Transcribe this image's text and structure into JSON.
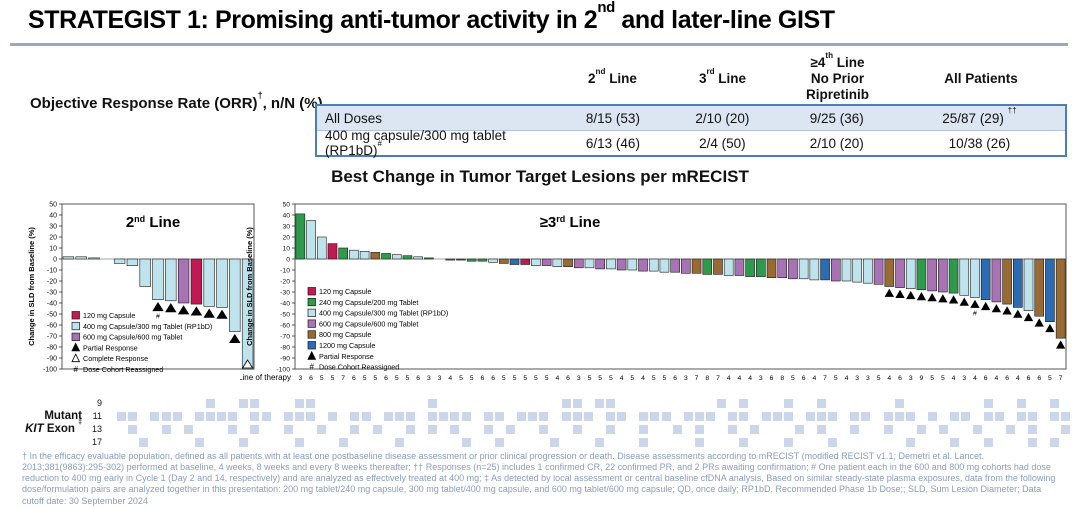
{
  "header": {
    "title_segments": [
      {
        "t": "STRATEGIST 1: Promising anti-tumor activity in 2"
      },
      {
        "t": "nd",
        "sup": true
      },
      {
        "t": " and later-line GIST"
      }
    ],
    "underline_color": "#9aa8c4"
  },
  "orr_table": {
    "row_label_segments": [
      {
        "t": "Objective Response Rate (ORR)"
      },
      {
        "t": "†",
        "sup": true
      },
      {
        "t": ", n/N (%)"
      }
    ],
    "columns": [
      {
        "lines": [
          [
            {
              "t": "2"
            },
            {
              "t": "nd",
              "sup": true
            },
            {
              "t": " Line"
            }
          ]
        ]
      },
      {
        "lines": [
          [
            {
              "t": "3"
            },
            {
              "t": "rd",
              "sup": true
            },
            {
              "t": " Line"
            }
          ]
        ]
      },
      {
        "lines": [
          [
            {
              "t": "≥4"
            },
            {
              "t": "th",
              "sup": true
            },
            {
              "t": " Line"
            }
          ],
          [
            {
              "t": "No Prior"
            }
          ],
          [
            {
              "t": "Ripretinib"
            }
          ]
        ]
      },
      {
        "lines": [
          [
            {
              "t": "All Patients"
            }
          ]
        ]
      }
    ],
    "rows": [
      {
        "label_segments": [
          {
            "t": "All Doses"
          }
        ],
        "values_segments": [
          [
            {
              "t": "8/15 (53)"
            }
          ],
          [
            {
              "t": "2/10 (20)"
            }
          ],
          [
            {
              "t": "9/25 (36)"
            }
          ],
          [
            {
              "t": "25/87 (29) "
            },
            {
              "t": "††",
              "sup": true
            }
          ]
        ]
      },
      {
        "label_segments": [
          {
            "t": "400 mg capsule/300 mg tablet (RP1bD)"
          },
          {
            "t": "#",
            "sup": true
          }
        ],
        "values_segments": [
          [
            {
              "t": "6/13 (46)"
            }
          ],
          [
            {
              "t": "2/4 (50)"
            }
          ],
          [
            {
              "t": "2/10 (20)"
            }
          ],
          [
            {
              "t": "10/38 (26)"
            }
          ]
        ]
      }
    ],
    "border_color": "#4a7ebb",
    "alt_row_color": "#dce6f2"
  },
  "chart_section": {
    "title": "Best Change in Tumor Target Lesions per mRECIST"
  },
  "chart_data": [
    {
      "type": "bar",
      "panel_title_segments": [
        {
          "t": "2"
        },
        {
          "t": "nd",
          "sup": true
        },
        {
          "t": " Line"
        }
      ],
      "ylabel": "Change in SLD from Baseline (%)",
      "xlabel": "",
      "ylim": [
        -100,
        50
      ],
      "ytick_step": 10,
      "legend_position": "inside-lower-left",
      "colors": {
        "c120": "#c11a52",
        "c240": "#2e9b4c",
        "rp1bd": "#bfe3ec",
        "c600": "#a873b5",
        "c800": "#996a33",
        "c1200": "#2b6cb5"
      },
      "legend": [
        {
          "c": "c120",
          "label": "120 mg Capsule"
        },
        {
          "c": "rp1bd",
          "label": "400 mg Capsule/300 mg Tablet (RP1bD)"
        },
        {
          "c": "c600",
          "label": "600 mg Capsule/600 mg Tablet"
        },
        {
          "glyph": "pr",
          "label": "Partial Response"
        },
        {
          "glyph": "cr",
          "label": "Complete Response"
        },
        {
          "glyph": "hash",
          "label": "Dose Cohort Reassigned"
        }
      ],
      "bars": [
        {
          "v": 2,
          "c": "rp1bd"
        },
        {
          "v": 2,
          "c": "rp1bd"
        },
        {
          "v": 1,
          "c": "rp1bd"
        },
        {
          "v": 0,
          "c": "rp1bd"
        },
        {
          "v": -4,
          "c": "rp1bd"
        },
        {
          "v": -6,
          "c": "rp1bd"
        },
        {
          "v": -25,
          "c": "rp1bd"
        },
        {
          "v": -37,
          "c": "rp1bd",
          "m": "pr",
          "hash": true
        },
        {
          "v": -38,
          "c": "rp1bd",
          "m": "pr"
        },
        {
          "v": -40,
          "c": "c600",
          "m": "pr"
        },
        {
          "v": -41,
          "c": "c120",
          "m": "pr"
        },
        {
          "v": -43,
          "c": "rp1bd",
          "m": "pr"
        },
        {
          "v": -44,
          "c": "rp1bd",
          "m": "pr"
        },
        {
          "v": -66,
          "c": "rp1bd",
          "m": "pr"
        },
        {
          "v": -100,
          "c": "rp1bd",
          "m": "cr"
        }
      ]
    },
    {
      "type": "bar",
      "panel_title_segments": [
        {
          "t": "≥3"
        },
        {
          "t": "rd",
          "sup": true
        },
        {
          "t": " Line"
        }
      ],
      "ylabel": "Change in SLD from Baseline (%)",
      "xlabel": "Line of therapy",
      "ylim": [
        -100,
        50
      ],
      "ytick_step": 10,
      "legend_position": "inside-lower-left",
      "colors": {
        "c120": "#c11a52",
        "c240": "#2e9b4c",
        "rp1bd": "#bfe3ec",
        "c600": "#a873b5",
        "c800": "#996a33",
        "c1200": "#2b6cb5"
      },
      "legend": [
        {
          "c": "c120",
          "label": "120 mg Capsule"
        },
        {
          "c": "c240",
          "label": "240 mg Capsule/200 mg Tablet"
        },
        {
          "c": "rp1bd",
          "label": "400 mg Capsule/300 mg Tablet (RP1bD)"
        },
        {
          "c": "c600",
          "label": "600 mg Capsule/600 mg Tablet"
        },
        {
          "c": "c800",
          "label": "800 mg Capsule"
        },
        {
          "c": "c1200",
          "label": "1200 mg Capsule"
        },
        {
          "glyph": "pr",
          "label": "Partial Response"
        },
        {
          "glyph": "hash",
          "label": "Dose Cohort Reassigned"
        }
      ],
      "bars": [
        {
          "v": 41,
          "c": "c240",
          "x": "3"
        },
        {
          "v": 35,
          "c": "rp1bd",
          "x": "6"
        },
        {
          "v": 20,
          "c": "rp1bd",
          "x": "5"
        },
        {
          "v": 14,
          "c": "c120",
          "x": "5"
        },
        {
          "v": 10,
          "c": "c240",
          "x": "7"
        },
        {
          "v": 8,
          "c": "rp1bd",
          "x": "6"
        },
        {
          "v": 7,
          "c": "rp1bd",
          "x": "5"
        },
        {
          "v": 6,
          "c": "c800",
          "x": "5"
        },
        {
          "v": 5,
          "c": "c240",
          "x": "6"
        },
        {
          "v": 4,
          "c": "rp1bd",
          "x": "5"
        },
        {
          "v": 3,
          "c": "c240",
          "x": "5"
        },
        {
          "v": 2,
          "c": "rp1bd",
          "x": "6"
        },
        {
          "v": 1,
          "c": "c240",
          "x": "3"
        },
        {
          "v": 0,
          "c": "rp1bd",
          "x": "3"
        },
        {
          "v": -1,
          "c": "c240",
          "x": "4"
        },
        {
          "v": -1,
          "c": "c1200",
          "x": "5"
        },
        {
          "v": -2,
          "c": "c240",
          "x": "5"
        },
        {
          "v": -2,
          "c": "c240",
          "x": "6"
        },
        {
          "v": -3,
          "c": "rp1bd",
          "x": "6"
        },
        {
          "v": -4,
          "c": "c800",
          "x": "5"
        },
        {
          "v": -5,
          "c": "c1200",
          "x": "5"
        },
        {
          "v": -5,
          "c": "c120",
          "x": "5"
        },
        {
          "v": -6,
          "c": "rp1bd",
          "x": "5"
        },
        {
          "v": -6,
          "c": "c600",
          "x": "5"
        },
        {
          "v": -7,
          "c": "rp1bd",
          "x": "4"
        },
        {
          "v": -7,
          "c": "c800",
          "x": "6"
        },
        {
          "v": -8,
          "c": "c600",
          "x": "3"
        },
        {
          "v": -8,
          "c": "rp1bd",
          "x": "5"
        },
        {
          "v": -9,
          "c": "c600",
          "x": "5"
        },
        {
          "v": -9,
          "c": "rp1bd",
          "x": "5"
        },
        {
          "v": -10,
          "c": "c600",
          "x": "4"
        },
        {
          "v": -10,
          "c": "rp1bd",
          "x": "5"
        },
        {
          "v": -11,
          "c": "c600",
          "x": "4"
        },
        {
          "v": -11,
          "c": "rp1bd",
          "x": "5"
        },
        {
          "v": -12,
          "c": "rp1bd",
          "x": "5"
        },
        {
          "v": -12,
          "c": "c600",
          "x": "6"
        },
        {
          "v": -13,
          "c": "c600",
          "x": "3"
        },
        {
          "v": -13,
          "c": "c800",
          "x": "7"
        },
        {
          "v": -14,
          "c": "c240",
          "x": "8"
        },
        {
          "v": -14,
          "c": "c800",
          "x": "7"
        },
        {
          "v": -15,
          "c": "rp1bd",
          "x": "4"
        },
        {
          "v": -15,
          "c": "c600",
          "x": "4"
        },
        {
          "v": -16,
          "c": "c240",
          "x": "4"
        },
        {
          "v": -16,
          "c": "c240",
          "x": "3"
        },
        {
          "v": -17,
          "c": "c800",
          "x": "6"
        },
        {
          "v": -17,
          "c": "c600",
          "x": "8"
        },
        {
          "v": -18,
          "c": "c600",
          "x": "5"
        },
        {
          "v": -18,
          "c": "rp1bd",
          "x": "6"
        },
        {
          "v": -19,
          "c": "rp1bd",
          "x": "4"
        },
        {
          "v": -19,
          "c": "c1200",
          "x": "7"
        },
        {
          "v": -20,
          "c": "c600",
          "x": "5"
        },
        {
          "v": -20,
          "c": "rp1bd",
          "x": "4"
        },
        {
          "v": -21,
          "c": "rp1bd",
          "x": "3"
        },
        {
          "v": -22,
          "c": "rp1bd",
          "x": "3"
        },
        {
          "v": -23,
          "c": "c600",
          "x": "5"
        },
        {
          "v": -25,
          "c": "c800",
          "x": "4",
          "m": "pr"
        },
        {
          "v": -26,
          "c": "c600",
          "x": "6",
          "m": "pr"
        },
        {
          "v": -27,
          "c": "rp1bd",
          "x": "3",
          "m": "pr"
        },
        {
          "v": -28,
          "c": "c240",
          "x": "9",
          "m": "pr"
        },
        {
          "v": -29,
          "c": "c600",
          "x": "5",
          "m": "pr"
        },
        {
          "v": -30,
          "c": "c600",
          "x": "5",
          "m": "pr"
        },
        {
          "v": -31,
          "c": "c240",
          "x": "4",
          "m": "pr"
        },
        {
          "v": -33,
          "c": "rp1bd",
          "x": "3",
          "m": "pr"
        },
        {
          "v": -35,
          "c": "rp1bd",
          "x": "4",
          "m": "pr",
          "hash": true
        },
        {
          "v": -37,
          "c": "c1200",
          "x": "6",
          "m": "pr"
        },
        {
          "v": -39,
          "c": "c600",
          "x": "4",
          "m": "pr"
        },
        {
          "v": -41,
          "c": "c800",
          "x": "6",
          "m": "pr"
        },
        {
          "v": -44,
          "c": "c1200",
          "x": "4",
          "m": "pr"
        },
        {
          "v": -47,
          "c": "rp1bd",
          "x": "6",
          "m": "pr"
        },
        {
          "v": -52,
          "c": "c800",
          "x": "6",
          "m": "pr"
        },
        {
          "v": -57,
          "c": "c1200",
          "x": "5",
          "m": "pr"
        },
        {
          "v": -72,
          "c": "c800",
          "x": "7",
          "m": "pr"
        }
      ]
    }
  ],
  "kit_heatmap": {
    "label_line1": "Mutant",
    "label_line2_italic": "KIT",
    "label_line2_rest": " Exon",
    "label_sup": "‡",
    "square_color": "#ccd6ea",
    "rows": [
      {
        "exon": "9",
        "bits": "000000000100110001100000000001000000000001101100000000010100010010000001000000010010010"
      },
      {
        "exon": "11",
        "bits": "011011101111011011101011011101111011011101110110111011101101110111011011101011011011011"
      },
      {
        "exon": "13",
        "bits": "001001010001010010010010100101010010100100100100100101001010001010010010010100100101001"
      },
      {
        "exon": "17",
        "bits": "000100001000100001000100001000001001000010001000100001000100010001000000100010010001010"
      }
    ]
  },
  "footnote": {
    "text": "† In the efficacy evaluable population, defined as all patients with at least one postbaseline disease assessment or prior clinical progression or death. Disease assessments according to mRECIST (modified RECIST v1.1; Demetri et al. Lancet. 2013;381(9863):295-302) performed at baseline, 4 weeks, 8 weeks and every 8 weeks thereafter; †† Responses (n=25) includes 1 confirmed CR, 22 confirmed PR, and 2 PRs awaiting confirmation; # One patient each in the 600 and 800 mg cohorts had dose reduction to 400 mg early in Cycle 1 (Day 2 and 14, respectively) and are analyzed as effectively treated at 400 mg; ‡ As detected by local assessment or central baseline cfDNA analysis, Based on similar steady-state plasma exposures, data from the following dose/formulation pairs are analyzed together in this presentation: 200 mg tablet/240 mg capsule, 300 mg tablet/400 mg capsule, and 600 mg tablet/600 mg capsule; QD, once daily; RP1bD, Recommended Phase 1b Dose;; SLD, Sum Lesion Diameter; Data cutoff date: 30 September 2024"
  }
}
